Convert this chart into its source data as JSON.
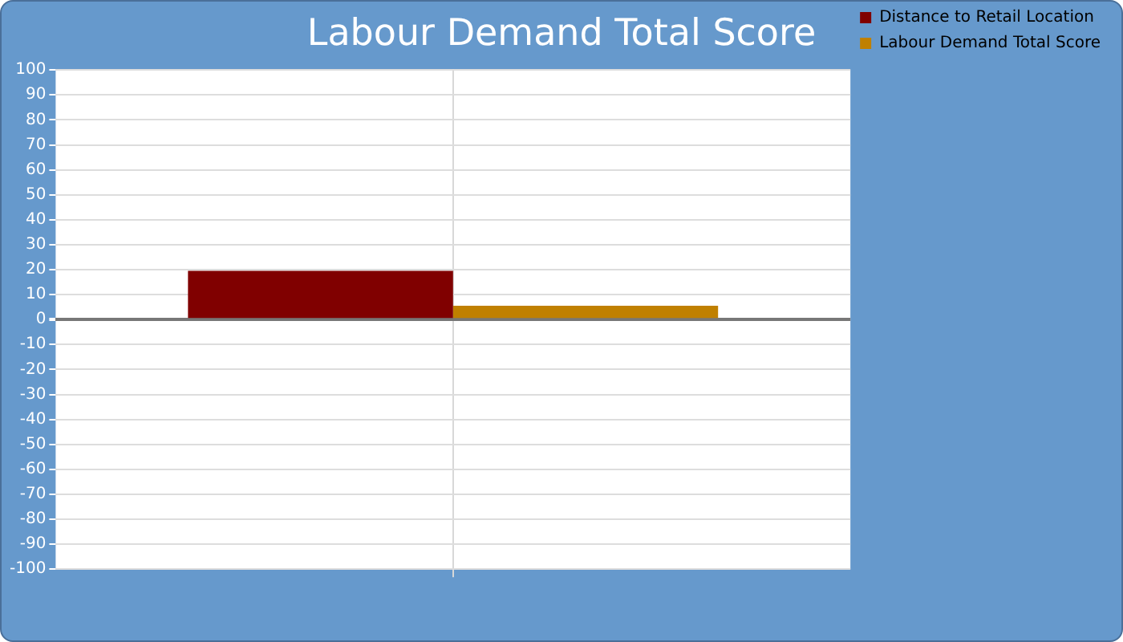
{
  "chart_data": {
    "type": "bar",
    "title": "Labour Demand Total Score",
    "categories": [
      null
    ],
    "series": [
      {
        "name": "Distance to Retail Location",
        "color": "#800000",
        "values": [
          19.5
        ]
      },
      {
        "name": "Labour Demand Total Score",
        "color": "#c08000",
        "values": [
          5.5
        ]
      }
    ],
    "ylim": [
      -100,
      100
    ],
    "yticks": [
      -100,
      -90,
      -80,
      -70,
      -60,
      -50,
      -40,
      -30,
      -20,
      -10,
      0,
      10,
      20,
      30,
      40,
      50,
      60,
      70,
      80,
      90,
      100
    ],
    "grid": true,
    "legend": "right"
  }
}
